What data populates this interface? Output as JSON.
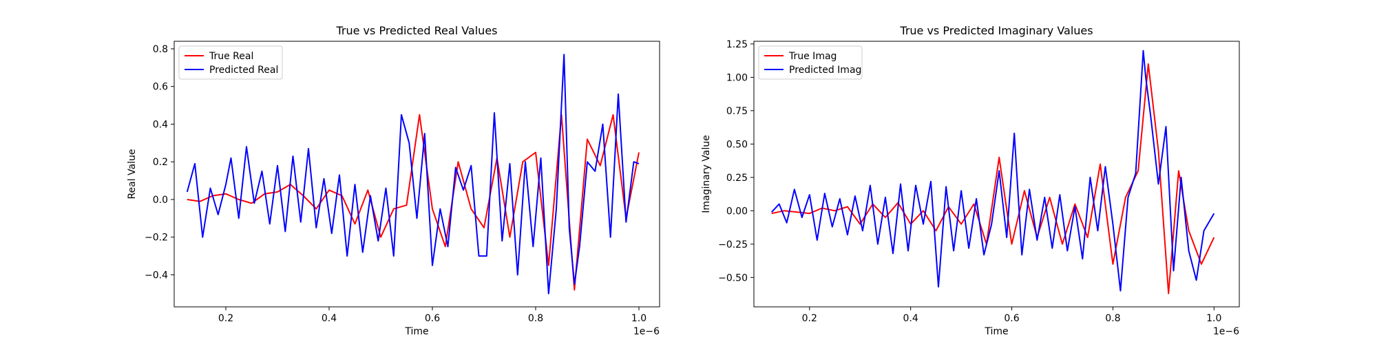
{
  "chart_data": [
    {
      "type": "line",
      "title": "True vs Predicted Real Values",
      "xlabel": "Time",
      "ylabel": "Real Value",
      "x_offset_label": "1e−6",
      "xlim": [
        0.1,
        1.04
      ],
      "ylim": [
        -0.57,
        0.84
      ],
      "x_ticks": [
        0.2,
        0.4,
        0.6,
        0.8,
        1.0
      ],
      "x_tick_labels": [
        "0.2",
        "0.4",
        "0.6",
        "0.8",
        "1.0"
      ],
      "y_ticks": [
        -0.4,
        -0.2,
        0.0,
        0.2,
        0.4,
        0.6,
        0.8
      ],
      "y_tick_labels": [
        "−0.4",
        "−0.2",
        "0.0",
        "0.2",
        "0.4",
        "0.6",
        "0.8"
      ],
      "legend_position": "top-left",
      "grid": false,
      "series": [
        {
          "name": "True Real",
          "color": "#ff0000",
          "x": [
            0.125,
            0.15,
            0.175,
            0.2,
            0.225,
            0.25,
            0.275,
            0.3,
            0.325,
            0.35,
            0.375,
            0.4,
            0.425,
            0.45,
            0.475,
            0.5,
            0.525,
            0.55,
            0.575,
            0.6,
            0.625,
            0.65,
            0.675,
            0.7,
            0.725,
            0.75,
            0.775,
            0.8,
            0.825,
            0.85,
            0.875,
            0.9,
            0.925,
            0.95,
            0.975,
            1.0
          ],
          "values": [
            0.0,
            -0.01,
            0.02,
            0.03,
            0.0,
            -0.02,
            0.03,
            0.04,
            0.08,
            0.02,
            -0.05,
            0.05,
            0.02,
            -0.13,
            0.05,
            -0.2,
            -0.05,
            -0.03,
            0.45,
            -0.05,
            -0.25,
            0.2,
            -0.05,
            -0.15,
            0.22,
            -0.2,
            0.2,
            0.25,
            -0.35,
            0.45,
            -0.48,
            0.32,
            0.18,
            0.45,
            -0.1,
            0.25
          ]
        },
        {
          "name": "Predicted Real",
          "color": "#0000ff",
          "x": [
            0.125,
            0.14,
            0.155,
            0.17,
            0.185,
            0.2,
            0.21,
            0.225,
            0.24,
            0.255,
            0.27,
            0.285,
            0.3,
            0.315,
            0.33,
            0.345,
            0.36,
            0.375,
            0.39,
            0.405,
            0.42,
            0.435,
            0.45,
            0.465,
            0.48,
            0.495,
            0.51,
            0.525,
            0.54,
            0.555,
            0.57,
            0.585,
            0.6,
            0.615,
            0.63,
            0.645,
            0.66,
            0.675,
            0.69,
            0.705,
            0.72,
            0.735,
            0.75,
            0.765,
            0.78,
            0.795,
            0.81,
            0.825,
            0.84,
            0.855,
            0.865,
            0.875,
            0.885,
            0.9,
            0.915,
            0.93,
            0.945,
            0.96,
            0.975,
            0.99,
            1.0
          ],
          "values": [
            0.04,
            0.19,
            -0.2,
            0.06,
            -0.08,
            0.08,
            0.22,
            -0.1,
            0.28,
            -0.02,
            0.15,
            -0.13,
            0.18,
            -0.17,
            0.23,
            -0.12,
            0.27,
            -0.15,
            0.11,
            -0.18,
            0.13,
            -0.3,
            0.08,
            -0.28,
            0.02,
            -0.22,
            0.06,
            -0.3,
            0.45,
            0.3,
            -0.1,
            0.35,
            -0.35,
            -0.05,
            -0.25,
            0.17,
            0.05,
            0.18,
            -0.3,
            -0.3,
            0.46,
            -0.22,
            0.19,
            -0.4,
            0.2,
            -0.25,
            0.22,
            -0.5,
            -0.05,
            0.77,
            -0.15,
            -0.45,
            -0.25,
            0.2,
            0.15,
            0.4,
            -0.2,
            0.56,
            -0.12,
            0.2,
            0.19
          ]
        }
      ]
    },
    {
      "type": "line",
      "title": "True vs Predicted Imaginary Values",
      "xlabel": "Time",
      "ylabel": "Imaginary Value",
      "x_offset_label": "1e−6",
      "xlim": [
        0.09,
        1.05
      ],
      "ylim": [
        -0.72,
        1.27
      ],
      "x_ticks": [
        0.2,
        0.4,
        0.6,
        0.8,
        1.0
      ],
      "x_tick_labels": [
        "0.2",
        "0.4",
        "0.6",
        "0.8",
        "1.0"
      ],
      "y_ticks": [
        -0.5,
        -0.25,
        0.0,
        0.25,
        0.5,
        0.75,
        1.0,
        1.25
      ],
      "y_tick_labels": [
        "−0.50",
        "−0.25",
        "0.00",
        "0.25",
        "0.50",
        "0.75",
        "1.00",
        "1.25"
      ],
      "legend_position": "top-left",
      "grid": false,
      "series": [
        {
          "name": "True Imag",
          "color": "#ff0000",
          "x": [
            0.125,
            0.15,
            0.175,
            0.2,
            0.225,
            0.25,
            0.275,
            0.3,
            0.325,
            0.35,
            0.375,
            0.4,
            0.425,
            0.45,
            0.475,
            0.5,
            0.525,
            0.55,
            0.575,
            0.6,
            0.625,
            0.65,
            0.675,
            0.7,
            0.725,
            0.75,
            0.775,
            0.8,
            0.825,
            0.85,
            0.87,
            0.89,
            0.91,
            0.93,
            0.95,
            0.975,
            1.0
          ],
          "values": [
            -0.02,
            0.0,
            -0.01,
            -0.02,
            0.02,
            0.0,
            0.03,
            -0.1,
            0.05,
            -0.05,
            0.06,
            -0.1,
            0.0,
            -0.15,
            0.03,
            -0.1,
            0.05,
            -0.25,
            0.4,
            -0.25,
            0.15,
            -0.2,
            0.1,
            -0.25,
            0.05,
            -0.2,
            0.35,
            -0.4,
            0.1,
            0.3,
            1.1,
            0.45,
            -0.62,
            0.3,
            -0.15,
            -0.4,
            -0.2
          ]
        },
        {
          "name": "Predicted Imag",
          "color": "#0000ff",
          "x": [
            0.125,
            0.14,
            0.155,
            0.17,
            0.185,
            0.2,
            0.215,
            0.23,
            0.245,
            0.26,
            0.275,
            0.29,
            0.305,
            0.32,
            0.335,
            0.35,
            0.365,
            0.38,
            0.395,
            0.41,
            0.425,
            0.44,
            0.455,
            0.47,
            0.485,
            0.5,
            0.515,
            0.53,
            0.545,
            0.56,
            0.575,
            0.59,
            0.605,
            0.62,
            0.635,
            0.65,
            0.665,
            0.68,
            0.695,
            0.71,
            0.725,
            0.74,
            0.755,
            0.77,
            0.785,
            0.8,
            0.815,
            0.83,
            0.845,
            0.86,
            0.865,
            0.875,
            0.89,
            0.905,
            0.92,
            0.935,
            0.95,
            0.965,
            0.98,
            1.0
          ],
          "values": [
            -0.01,
            0.05,
            -0.09,
            0.16,
            -0.05,
            0.12,
            -0.22,
            0.13,
            -0.12,
            0.09,
            -0.18,
            0.11,
            -0.15,
            0.19,
            -0.25,
            0.1,
            -0.32,
            0.2,
            -0.3,
            0.19,
            -0.1,
            0.22,
            -0.57,
            0.18,
            -0.3,
            0.15,
            -0.28,
            0.09,
            -0.33,
            -0.1,
            0.3,
            -0.2,
            0.58,
            -0.33,
            0.16,
            -0.22,
            0.1,
            -0.28,
            0.12,
            -0.3,
            0.03,
            -0.36,
            0.25,
            -0.15,
            0.33,
            -0.1,
            -0.6,
            0.1,
            0.28,
            1.2,
            1.0,
            0.7,
            0.2,
            0.63,
            -0.45,
            0.25,
            -0.3,
            -0.52,
            -0.15,
            -0.02
          ]
        }
      ]
    }
  ]
}
